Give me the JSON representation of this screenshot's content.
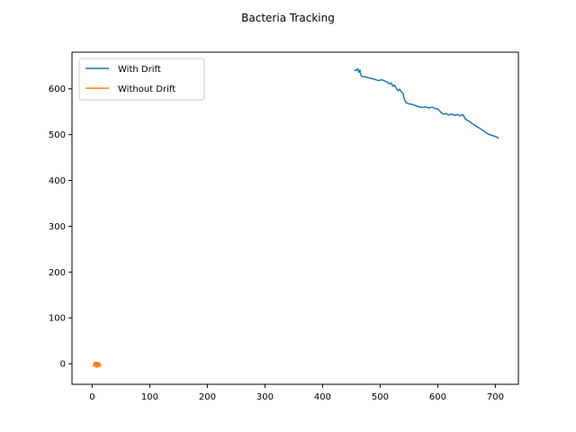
{
  "chart_data": {
    "type": "line",
    "title": "Bacteria Tracking",
    "xlabel": "",
    "ylabel": "",
    "xlim": [
      -35,
      740
    ],
    "ylim": [
      -45,
      680
    ],
    "xticks": [
      0,
      100,
      200,
      300,
      400,
      500,
      600,
      700
    ],
    "yticks": [
      0,
      100,
      200,
      300,
      400,
      500,
      600
    ],
    "grid": false,
    "legend_position": "top-left",
    "series": [
      {
        "name": "With Drift",
        "color": "#1f77b4",
        "points": [
          [
            456,
            640
          ],
          [
            459,
            641
          ],
          [
            461,
            644
          ],
          [
            463,
            636
          ],
          [
            465,
            641
          ],
          [
            466,
            632
          ],
          [
            468,
            627
          ],
          [
            475,
            626
          ],
          [
            483,
            623
          ],
          [
            490,
            621
          ],
          [
            497,
            618
          ],
          [
            503,
            620
          ],
          [
            508,
            617
          ],
          [
            512,
            615
          ],
          [
            516,
            611
          ],
          [
            519,
            613
          ],
          [
            522,
            606
          ],
          [
            525,
            608
          ],
          [
            528,
            601
          ],
          [
            531,
            596
          ],
          [
            534,
            599
          ],
          [
            537,
            593
          ],
          [
            540,
            590
          ],
          [
            541,
            582
          ],
          [
            543,
            575
          ],
          [
            545,
            570
          ],
          [
            550,
            567
          ],
          [
            556,
            566
          ],
          [
            562,
            563
          ],
          [
            567,
            561
          ],
          [
            573,
            559
          ],
          [
            579,
            561
          ],
          [
            584,
            558
          ],
          [
            590,
            560
          ],
          [
            596,
            557
          ],
          [
            600,
            556
          ],
          [
            603,
            552
          ],
          [
            606,
            548
          ],
          [
            610,
            545
          ],
          [
            614,
            546
          ],
          [
            619,
            543
          ],
          [
            624,
            545
          ],
          [
            629,
            542
          ],
          [
            634,
            544
          ],
          [
            639,
            541
          ],
          [
            643,
            544
          ],
          [
            646,
            539
          ],
          [
            648,
            534
          ],
          [
            652,
            531
          ],
          [
            656,
            528
          ],
          [
            660,
            524
          ],
          [
            665,
            520
          ],
          [
            670,
            516
          ],
          [
            675,
            512
          ],
          [
            680,
            508
          ],
          [
            685,
            503
          ],
          [
            690,
            500
          ],
          [
            695,
            498
          ],
          [
            700,
            496
          ],
          [
            705,
            493
          ]
        ]
      },
      {
        "name": "Without Drift",
        "color": "#ff7f0e",
        "points": [
          [
            3,
            2
          ],
          [
            5,
            -4
          ],
          [
            7,
            1
          ],
          [
            4,
            -6
          ],
          [
            8,
            3
          ],
          [
            6,
            -2
          ],
          [
            10,
            0
          ],
          [
            7,
            -8
          ],
          [
            11,
            -3
          ],
          [
            9,
            2
          ],
          [
            12,
            -5
          ],
          [
            8,
            -1
          ],
          [
            13,
            1
          ],
          [
            10,
            -6
          ],
          [
            14,
            -2
          ],
          [
            11,
            3
          ],
          [
            15,
            -4
          ],
          [
            9,
            -7
          ],
          [
            6,
            -3
          ],
          [
            4,
            1
          ],
          [
            2,
            -5
          ],
          [
            5,
            3
          ],
          [
            8,
            -4
          ],
          [
            12,
            0
          ],
          [
            14,
            -3
          ],
          [
            10,
            -1
          ],
          [
            7,
            2
          ],
          [
            5,
            -2
          ],
          [
            9,
            -5
          ],
          [
            13,
            -2
          ]
        ]
      }
    ]
  }
}
